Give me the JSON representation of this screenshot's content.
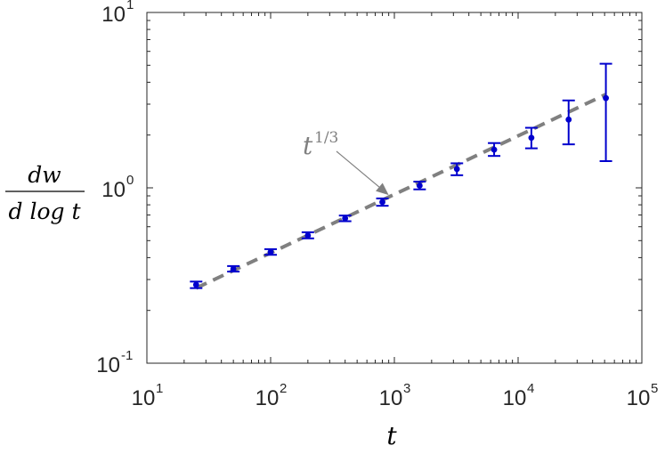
{
  "chart_data": {
    "type": "scatter",
    "x_scale": "log",
    "y_scale": "log",
    "xlim": [
      10,
      100000
    ],
    "ylim": [
      0.1,
      10
    ],
    "xlabel": "t",
    "ylabel": {
      "numerator": "dw",
      "denominator": "d log t"
    },
    "x_ticks": [
      {
        "base": "10",
        "exp": "1"
      },
      {
        "base": "10",
        "exp": "2"
      },
      {
        "base": "10",
        "exp": "3"
      },
      {
        "base": "10",
        "exp": "4"
      },
      {
        "base": "10",
        "exp": "5"
      }
    ],
    "y_ticks": [
      {
        "base": "10",
        "exp": "-1"
      },
      {
        "base": "10",
        "exp": "0"
      },
      {
        "base": "10",
        "exp": "1"
      }
    ],
    "grid": false,
    "series": [
      {
        "style": "points-with-errorbars",
        "color": "#0000CD",
        "x": [
          25,
          50,
          100,
          200,
          400,
          800,
          1600,
          3200,
          6400,
          12800,
          25600,
          51200
        ],
        "y": [
          0.28,
          0.345,
          0.43,
          0.535,
          0.67,
          0.83,
          1.03,
          1.28,
          1.65,
          1.93,
          2.45,
          3.25
        ],
        "y_lower": [
          0.268,
          0.333,
          0.415,
          0.515,
          0.645,
          0.79,
          0.98,
          1.18,
          1.52,
          1.68,
          1.77,
          1.42
        ],
        "y_upper": [
          0.292,
          0.358,
          0.447,
          0.558,
          0.695,
          0.87,
          1.085,
          1.38,
          1.8,
          2.2,
          3.15,
          5.1
        ]
      },
      {
        "style": "dashed-line",
        "color": "#808080",
        "x": [
          25,
          51200
        ],
        "y": [
          0.268,
          3.41
        ]
      }
    ],
    "annotations": [
      {
        "text_base": "t",
        "text_exp": "1/3",
        "arrow_to": {
          "x": 900,
          "y": 0.91
        }
      }
    ]
  }
}
